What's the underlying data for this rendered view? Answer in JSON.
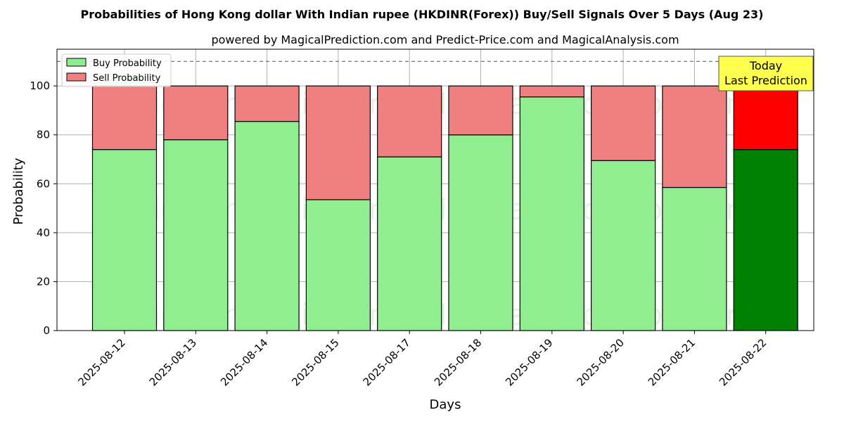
{
  "chart_data": {
    "type": "bar",
    "stacked": true,
    "title": "Probabilities of Hong Kong dollar With Indian rupee (HKDINR(Forex)) Buy/Sell Signals Over 5 Days (Aug 23)",
    "subtitle": "powered by MagicalPrediction.com and Predict-Price.com and MagicalAnalysis.com",
    "xlabel": "Days",
    "ylabel": "Probability",
    "ylim": [
      0,
      115
    ],
    "yticks": [
      0,
      20,
      40,
      60,
      80,
      100
    ],
    "grid": true,
    "reference_line": 110,
    "categories": [
      "2025-08-12",
      "2025-08-13",
      "2025-08-14",
      "2025-08-15",
      "2025-08-17",
      "2025-08-18",
      "2025-08-19",
      "2025-08-20",
      "2025-08-21",
      "2025-08-22"
    ],
    "series": [
      {
        "name": "Buy Probability",
        "color": "#90ee90",
        "highlight_color": "#008000",
        "values": [
          74,
          78,
          85.5,
          53.5,
          71,
          80,
          95.5,
          69.5,
          58.5,
          74
        ]
      },
      {
        "name": "Sell Probability",
        "color": "#f08080",
        "highlight_color": "#ff0000",
        "values": [
          26,
          22,
          14.5,
          46.5,
          29,
          20,
          4.5,
          30.5,
          41.5,
          26
        ]
      }
    ],
    "highlight_index": 9,
    "legend_position": "top-left",
    "annotation": {
      "lines": [
        "Today",
        "Last Prediction"
      ],
      "color": "#ffff4d"
    },
    "watermarks": [
      "MagicalAnalysis.com",
      "MagicalPrediction.com"
    ]
  }
}
